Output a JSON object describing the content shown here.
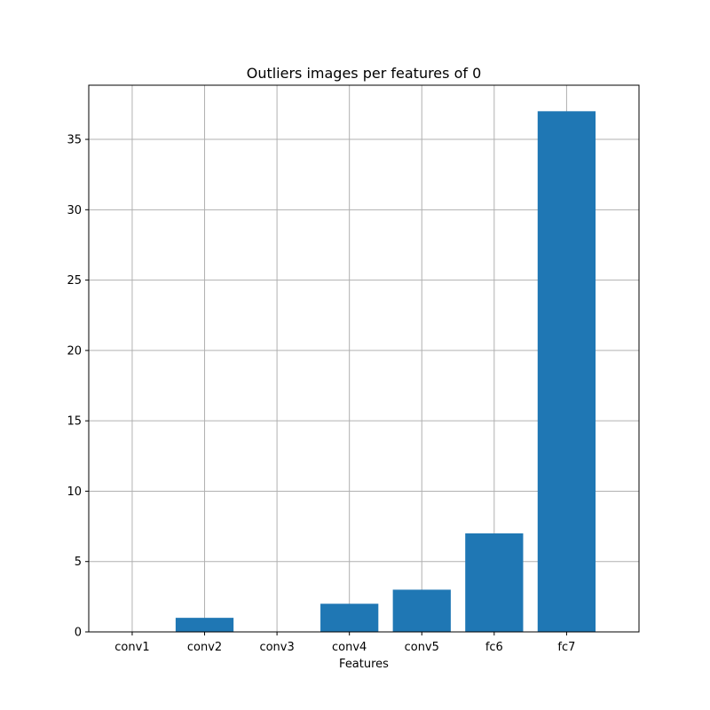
{
  "chart_data": {
    "type": "bar",
    "title": "Outliers images per features of 0",
    "xlabel": "Features",
    "ylabel": "",
    "categories": [
      "conv1",
      "conv2",
      "conv3",
      "conv4",
      "conv5",
      "fc6",
      "fc7"
    ],
    "values": [
      0,
      1,
      0,
      2,
      3,
      7,
      37
    ],
    "ylim": [
      0,
      38.85
    ],
    "yticks": [
      0,
      5,
      10,
      15,
      20,
      25,
      30,
      35
    ],
    "grid": true,
    "bar_color": "#1f77b4",
    "grid_color": "#b0b0b0"
  }
}
